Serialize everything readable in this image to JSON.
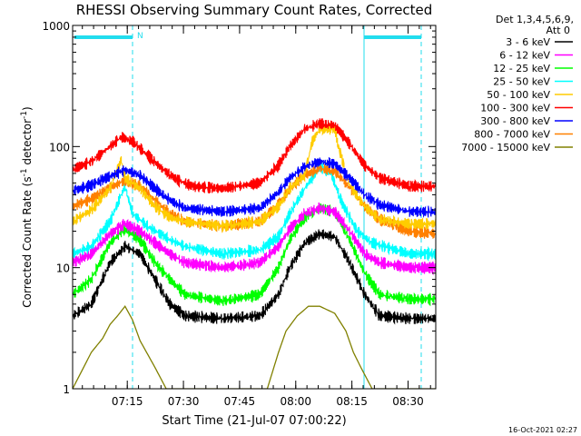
{
  "chart_data": {
    "type": "line",
    "title": "RHESSI Observing Summary Count Rates, Corrected",
    "xlabel": "Start Time (21-Jul-07 07:00:22)",
    "ylabel_main": "Corrected Count Rate (s",
    "ylabel_sup1": "-1",
    "ylabel_mid": " detector",
    "ylabel_sup2": "-1",
    "ylabel_end": ")",
    "y_scale": "log",
    "ylim": [
      1,
      1000
    ],
    "xlim_minutes": [
      0,
      97
    ],
    "y_tick_labels": [
      "1",
      "10",
      "100",
      "1000"
    ],
    "x_tick_labels": [
      "07:15",
      "07:30",
      "07:45",
      "08:00",
      "08:15",
      "08:30"
    ],
    "x_tick_minutes": [
      14.6,
      29.6,
      44.6,
      59.6,
      74.6,
      89.6
    ],
    "legend_header": [
      "Det 1,3,4,5,6,9,",
      "Att 0"
    ],
    "timestamp": "16-Oct-2021 02:27",
    "flag_label": "N",
    "series": [
      {
        "name": "3 - 6 keV",
        "color": "#000000",
        "points": [
          [
            0,
            4
          ],
          [
            5,
            5
          ],
          [
            10,
            11
          ],
          [
            14,
            15
          ],
          [
            18,
            13
          ],
          [
            22,
            8
          ],
          [
            26,
            5
          ],
          [
            30,
            4
          ],
          [
            40,
            3.8
          ],
          [
            50,
            4
          ],
          [
            55,
            6
          ],
          [
            58,
            10
          ],
          [
            62,
            16
          ],
          [
            66,
            19
          ],
          [
            70,
            18
          ],
          [
            74,
            11
          ],
          [
            78,
            6
          ],
          [
            82,
            4
          ],
          [
            90,
            3.8
          ],
          [
            97,
            3.8
          ]
        ]
      },
      {
        "name": "6 - 12 keV",
        "color": "#ff00ff",
        "points": [
          [
            0,
            11
          ],
          [
            5,
            13
          ],
          [
            10,
            19
          ],
          [
            14,
            23
          ],
          [
            18,
            20
          ],
          [
            22,
            16
          ],
          [
            26,
            13
          ],
          [
            30,
            11
          ],
          [
            40,
            10
          ],
          [
            50,
            11
          ],
          [
            55,
            15
          ],
          [
            58,
            21
          ],
          [
            62,
            28
          ],
          [
            66,
            31
          ],
          [
            70,
            29
          ],
          [
            74,
            20
          ],
          [
            78,
            13
          ],
          [
            82,
            11
          ],
          [
            90,
            10
          ],
          [
            97,
            10
          ]
        ]
      },
      {
        "name": "12 - 25 keV",
        "color": "#00ff00",
        "points": [
          [
            0,
            6
          ],
          [
            5,
            8
          ],
          [
            10,
            16
          ],
          [
            14,
            21
          ],
          [
            18,
            17
          ],
          [
            22,
            11
          ],
          [
            26,
            8
          ],
          [
            30,
            6
          ],
          [
            40,
            5.3
          ],
          [
            50,
            6
          ],
          [
            55,
            10
          ],
          [
            58,
            17
          ],
          [
            62,
            26
          ],
          [
            66,
            31
          ],
          [
            70,
            29
          ],
          [
            74,
            17
          ],
          [
            78,
            9
          ],
          [
            82,
            6
          ],
          [
            90,
            5.5
          ],
          [
            97,
            5.5
          ]
        ]
      },
      {
        "name": "25 - 50 keV",
        "color": "#00ffff",
        "points": [
          [
            0,
            13
          ],
          [
            5,
            15
          ],
          [
            10,
            24
          ],
          [
            13,
            40
          ],
          [
            14,
            47
          ],
          [
            16,
            28
          ],
          [
            20,
            22
          ],
          [
            26,
            17
          ],
          [
            30,
            15
          ],
          [
            40,
            13
          ],
          [
            50,
            14
          ],
          [
            55,
            18
          ],
          [
            58,
            28
          ],
          [
            62,
            45
          ],
          [
            66,
            68
          ],
          [
            69,
            60
          ],
          [
            72,
            34
          ],
          [
            76,
            20
          ],
          [
            80,
            16
          ],
          [
            90,
            13
          ],
          [
            97,
            13
          ]
        ]
      },
      {
        "name": "50 - 100 keV",
        "color": "#ffcc00",
        "points": [
          [
            0,
            24
          ],
          [
            5,
            30
          ],
          [
            10,
            45
          ],
          [
            13,
            78
          ],
          [
            14,
            55
          ],
          [
            18,
            45
          ],
          [
            22,
            32
          ],
          [
            26,
            26
          ],
          [
            30,
            24
          ],
          [
            40,
            22
          ],
          [
            50,
            24
          ],
          [
            55,
            32
          ],
          [
            58,
            45
          ],
          [
            62,
            58
          ],
          [
            64,
            110
          ],
          [
            66,
            140
          ],
          [
            70,
            140
          ],
          [
            71,
            100
          ],
          [
            74,
            48
          ],
          [
            78,
            32
          ],
          [
            82,
            25
          ],
          [
            90,
            23
          ],
          [
            97,
            23
          ]
        ]
      },
      {
        "name": "100 - 300 keV",
        "color": "#ff0000",
        "points": [
          [
            0,
            65
          ],
          [
            5,
            75
          ],
          [
            10,
            100
          ],
          [
            13,
            120
          ],
          [
            16,
            110
          ],
          [
            20,
            85
          ],
          [
            24,
            65
          ],
          [
            28,
            53
          ],
          [
            32,
            47
          ],
          [
            40,
            45
          ],
          [
            50,
            50
          ],
          [
            55,
            70
          ],
          [
            58,
            100
          ],
          [
            62,
            140
          ],
          [
            66,
            155
          ],
          [
            70,
            150
          ],
          [
            74,
            105
          ],
          [
            78,
            70
          ],
          [
            82,
            55
          ],
          [
            90,
            47
          ],
          [
            97,
            47
          ]
        ]
      },
      {
        "name": "300 - 800 keV",
        "color": "#0000ff",
        "points": [
          [
            0,
            43
          ],
          [
            5,
            48
          ],
          [
            10,
            57
          ],
          [
            14,
            64
          ],
          [
            18,
            58
          ],
          [
            22,
            45
          ],
          [
            26,
            36
          ],
          [
            30,
            31
          ],
          [
            40,
            29
          ],
          [
            50,
            31
          ],
          [
            55,
            42
          ],
          [
            58,
            55
          ],
          [
            62,
            68
          ],
          [
            66,
            75
          ],
          [
            70,
            72
          ],
          [
            74,
            55
          ],
          [
            78,
            40
          ],
          [
            82,
            33
          ],
          [
            90,
            29
          ],
          [
            97,
            29
          ]
        ]
      },
      {
        "name": "800 - 7000 keV",
        "color": "#ff8000",
        "points": [
          [
            0,
            32
          ],
          [
            5,
            37
          ],
          [
            10,
            46
          ],
          [
            14,
            52
          ],
          [
            18,
            47
          ],
          [
            22,
            36
          ],
          [
            26,
            28
          ],
          [
            30,
            24
          ],
          [
            40,
            22
          ],
          [
            50,
            24
          ],
          [
            55,
            33
          ],
          [
            58,
            45
          ],
          [
            62,
            58
          ],
          [
            66,
            66
          ],
          [
            70,
            63
          ],
          [
            74,
            46
          ],
          [
            78,
            32
          ],
          [
            82,
            25
          ],
          [
            90,
            20
          ],
          [
            97,
            19
          ]
        ]
      },
      {
        "name": "7000 - 15000 keV",
        "color": "#808000",
        "points": [
          [
            0,
            1
          ],
          [
            5,
            2
          ],
          [
            8,
            2.6
          ],
          [
            10,
            3.4
          ],
          [
            12,
            4
          ],
          [
            14,
            4.8
          ],
          [
            16,
            3.7
          ],
          [
            18,
            2.5
          ],
          [
            22,
            1.5
          ],
          [
            25,
            1
          ],
          [
            52,
            1
          ],
          [
            55,
            2
          ],
          [
            57,
            3
          ],
          [
            60,
            4
          ],
          [
            63,
            4.8
          ],
          [
            66,
            4.8
          ],
          [
            70,
            4.2
          ],
          [
            73,
            3
          ],
          [
            75,
            2
          ],
          [
            77,
            1.5
          ],
          [
            80,
            1
          ],
          [
            97,
            1
          ]
        ]
      }
    ]
  }
}
